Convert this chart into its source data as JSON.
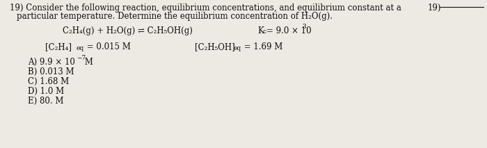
{
  "background_color": "#ede9e3",
  "line1": "19) Consider the following reaction, equilibrium concentrations, and equilibrium constant at a",
  "line2": "     particular temperature. Determine the equilibrium concentration of H₂O(g).",
  "q_num_right": "19)",
  "reaction": "C₂H₄(g) + H₂O(g) ⇌ C₂H₅OH(g)",
  "kc_text": "K",
  "kc_sub": "c",
  "kc_rest": "= 9.0 × 10",
  "kc_exp": "3",
  "conc1_main": "[C₂H₄]",
  "conc1_sub": "eq",
  "conc1_val": " = 0.015 M",
  "conc2_main": "[C₂H₅OH]",
  "conc2_sub": "eq",
  "conc2_val": " = 1.69 M",
  "choice_A": "A) 9.9 × 10",
  "choice_A_exp": "−7",
  "choice_A_end": " M",
  "choice_B": "B) 0.013 M",
  "choice_C": "C) 1.68 M",
  "choice_D": "D) 1.0 M",
  "choice_E": "E) 80. M",
  "fs": 8.5,
  "fs_small": 6.5,
  "tc": "#111111"
}
